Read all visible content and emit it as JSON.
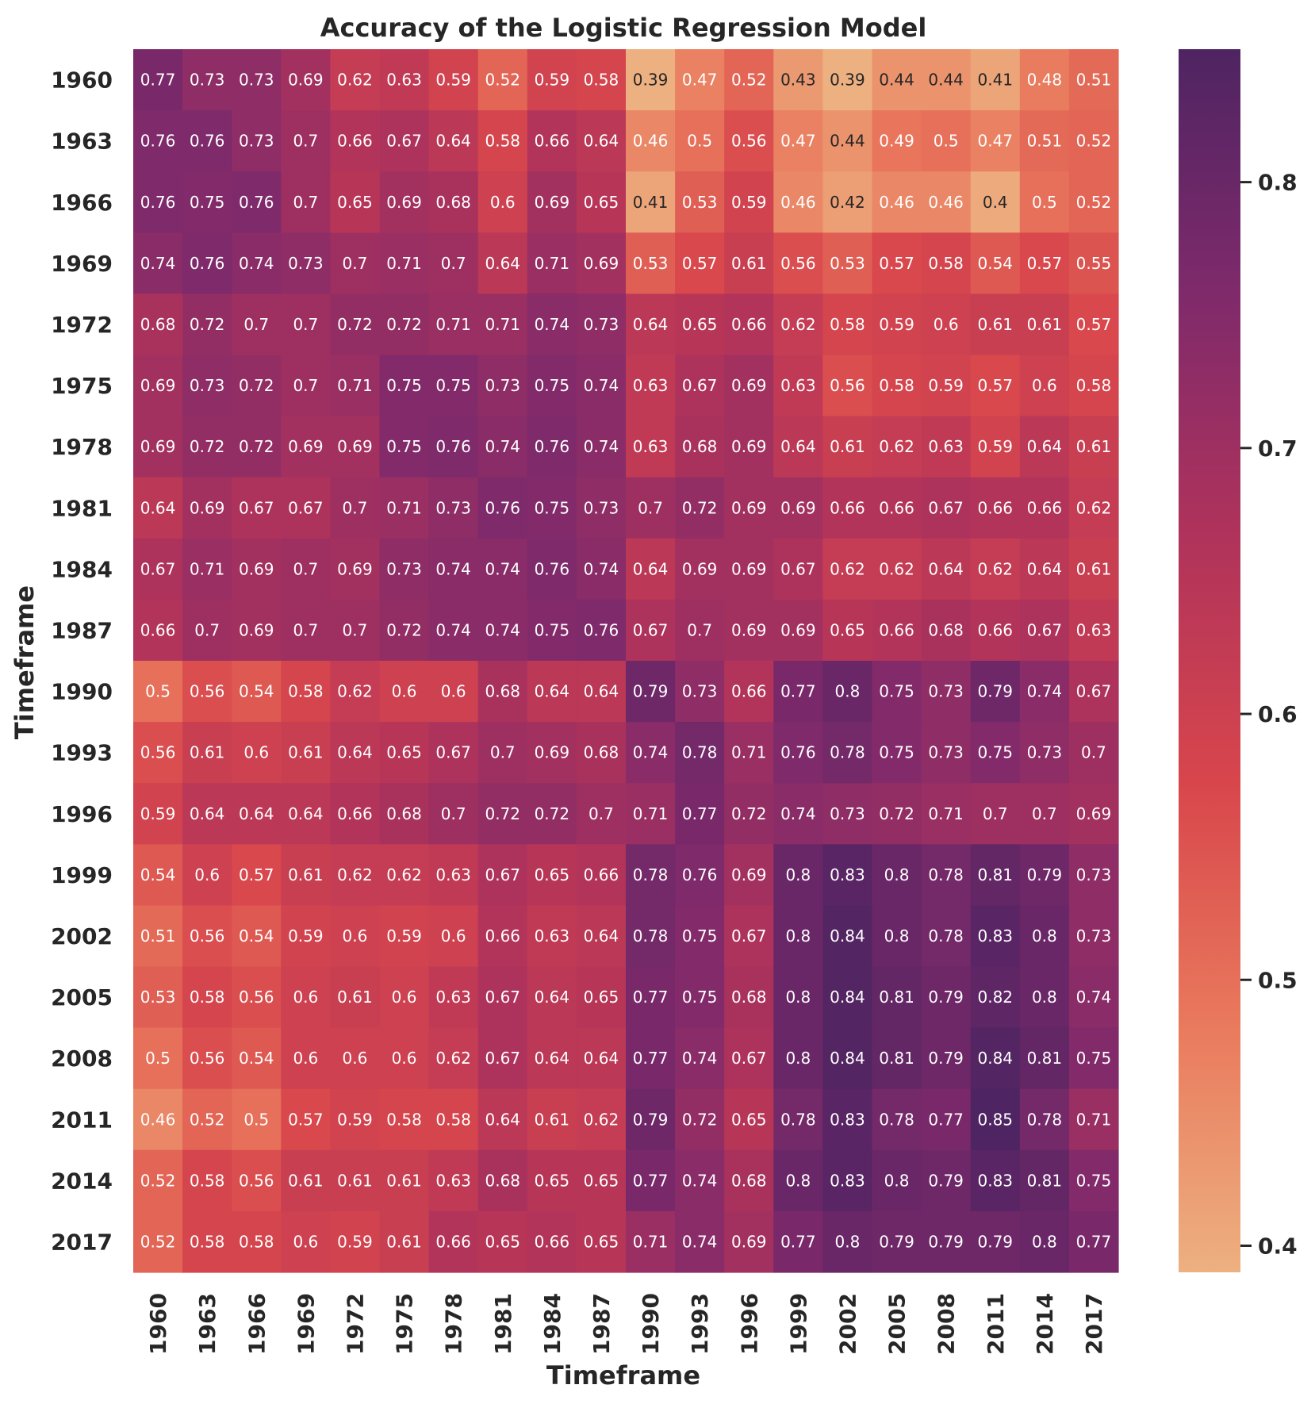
{
  "chart_data": {
    "type": "heatmap",
    "title": "Accuracy of the Logistic Regression Model",
    "xlabel": "Timeframe",
    "ylabel": "Timeframe",
    "x_categories": [
      "1960",
      "1963",
      "1966",
      "1969",
      "1972",
      "1975",
      "1978",
      "1981",
      "1984",
      "1987",
      "1990",
      "1993",
      "1996",
      "1999",
      "2002",
      "2005",
      "2008",
      "2011",
      "2014",
      "2017"
    ],
    "y_categories": [
      "1960",
      "1963",
      "1966",
      "1969",
      "1972",
      "1975",
      "1978",
      "1981",
      "1984",
      "1987",
      "1990",
      "1993",
      "1996",
      "1999",
      "2002",
      "2005",
      "2008",
      "2011",
      "2014",
      "2017"
    ],
    "values": [
      [
        0.77,
        0.73,
        0.73,
        0.69,
        0.62,
        0.63,
        0.59,
        0.52,
        0.59,
        0.58,
        0.39,
        0.47,
        0.52,
        0.43,
        0.39,
        0.44,
        0.44,
        0.41,
        0.48,
        0.51
      ],
      [
        0.76,
        0.76,
        0.73,
        0.7,
        0.66,
        0.67,
        0.64,
        0.58,
        0.66,
        0.64,
        0.46,
        0.5,
        0.56,
        0.47,
        0.44,
        0.49,
        0.5,
        0.47,
        0.51,
        0.52
      ],
      [
        0.76,
        0.75,
        0.76,
        0.7,
        0.65,
        0.69,
        0.68,
        0.6,
        0.69,
        0.65,
        0.41,
        0.53,
        0.59,
        0.46,
        0.42,
        0.46,
        0.46,
        0.4,
        0.5,
        0.52
      ],
      [
        0.74,
        0.76,
        0.74,
        0.73,
        0.7,
        0.71,
        0.7,
        0.64,
        0.71,
        0.69,
        0.53,
        0.57,
        0.61,
        0.56,
        0.53,
        0.57,
        0.58,
        0.54,
        0.57,
        0.55
      ],
      [
        0.68,
        0.72,
        0.7,
        0.7,
        0.72,
        0.72,
        0.71,
        0.71,
        0.74,
        0.73,
        0.64,
        0.65,
        0.66,
        0.62,
        0.58,
        0.59,
        0.6,
        0.61,
        0.61,
        0.57
      ],
      [
        0.69,
        0.73,
        0.72,
        0.7,
        0.71,
        0.75,
        0.75,
        0.73,
        0.75,
        0.74,
        0.63,
        0.67,
        0.69,
        0.63,
        0.56,
        0.58,
        0.59,
        0.57,
        0.6,
        0.58
      ],
      [
        0.69,
        0.72,
        0.72,
        0.69,
        0.69,
        0.75,
        0.76,
        0.74,
        0.76,
        0.74,
        0.63,
        0.68,
        0.69,
        0.64,
        0.61,
        0.62,
        0.63,
        0.59,
        0.64,
        0.61
      ],
      [
        0.64,
        0.69,
        0.67,
        0.67,
        0.7,
        0.71,
        0.73,
        0.76,
        0.75,
        0.73,
        0.7,
        0.72,
        0.69,
        0.69,
        0.66,
        0.66,
        0.67,
        0.66,
        0.66,
        0.62
      ],
      [
        0.67,
        0.71,
        0.69,
        0.7,
        0.69,
        0.73,
        0.74,
        0.74,
        0.76,
        0.74,
        0.64,
        0.69,
        0.69,
        0.67,
        0.62,
        0.62,
        0.64,
        0.62,
        0.64,
        0.61
      ],
      [
        0.66,
        0.7,
        0.69,
        0.7,
        0.7,
        0.72,
        0.74,
        0.74,
        0.75,
        0.76,
        0.67,
        0.7,
        0.69,
        0.69,
        0.65,
        0.66,
        0.68,
        0.66,
        0.67,
        0.63
      ],
      [
        0.5,
        0.56,
        0.54,
        0.58,
        0.62,
        0.6,
        0.6,
        0.68,
        0.64,
        0.64,
        0.79,
        0.73,
        0.66,
        0.77,
        0.8,
        0.75,
        0.73,
        0.79,
        0.74,
        0.67
      ],
      [
        0.56,
        0.61,
        0.6,
        0.61,
        0.64,
        0.65,
        0.67,
        0.7,
        0.69,
        0.68,
        0.74,
        0.78,
        0.71,
        0.76,
        0.78,
        0.75,
        0.73,
        0.75,
        0.73,
        0.7
      ],
      [
        0.59,
        0.64,
        0.64,
        0.64,
        0.66,
        0.68,
        0.7,
        0.72,
        0.72,
        0.7,
        0.71,
        0.77,
        0.72,
        0.74,
        0.73,
        0.72,
        0.71,
        0.7,
        0.7,
        0.69
      ],
      [
        0.54,
        0.6,
        0.57,
        0.61,
        0.62,
        0.62,
        0.63,
        0.67,
        0.65,
        0.66,
        0.78,
        0.76,
        0.69,
        0.8,
        0.83,
        0.8,
        0.78,
        0.81,
        0.79,
        0.73
      ],
      [
        0.51,
        0.56,
        0.54,
        0.59,
        0.6,
        0.59,
        0.6,
        0.66,
        0.63,
        0.64,
        0.78,
        0.75,
        0.67,
        0.8,
        0.84,
        0.8,
        0.78,
        0.83,
        0.8,
        0.73
      ],
      [
        0.53,
        0.58,
        0.56,
        0.6,
        0.61,
        0.6,
        0.63,
        0.67,
        0.64,
        0.65,
        0.77,
        0.75,
        0.68,
        0.8,
        0.84,
        0.81,
        0.79,
        0.82,
        0.8,
        0.74
      ],
      [
        0.5,
        0.56,
        0.54,
        0.6,
        0.6,
        0.6,
        0.62,
        0.67,
        0.64,
        0.64,
        0.77,
        0.74,
        0.67,
        0.8,
        0.84,
        0.81,
        0.79,
        0.84,
        0.81,
        0.75
      ],
      [
        0.46,
        0.52,
        0.5,
        0.57,
        0.59,
        0.58,
        0.58,
        0.64,
        0.61,
        0.62,
        0.79,
        0.72,
        0.65,
        0.78,
        0.83,
        0.78,
        0.77,
        0.85,
        0.78,
        0.71
      ],
      [
        0.52,
        0.58,
        0.56,
        0.61,
        0.61,
        0.61,
        0.63,
        0.68,
        0.65,
        0.65,
        0.77,
        0.74,
        0.68,
        0.8,
        0.83,
        0.8,
        0.79,
        0.83,
        0.81,
        0.75
      ],
      [
        0.52,
        0.58,
        0.58,
        0.6,
        0.59,
        0.61,
        0.66,
        0.65,
        0.66,
        0.65,
        0.71,
        0.74,
        0.69,
        0.77,
        0.8,
        0.79,
        0.79,
        0.79,
        0.8,
        0.77
      ]
    ],
    "colorbar": {
      "min": 0.39,
      "max": 0.85,
      "ticks": [
        0.4,
        0.5,
        0.6,
        0.7,
        0.8
      ],
      "tick_labels": [
        "0.4",
        "0.5",
        "0.6",
        "0.7",
        "0.8"
      ]
    },
    "colormap": [
      "#edb081",
      "#e97a5d",
      "#d8464c",
      "#b0335b",
      "#7f2a6b",
      "#4f2462"
    ],
    "grid": false,
    "legend": "none"
  }
}
